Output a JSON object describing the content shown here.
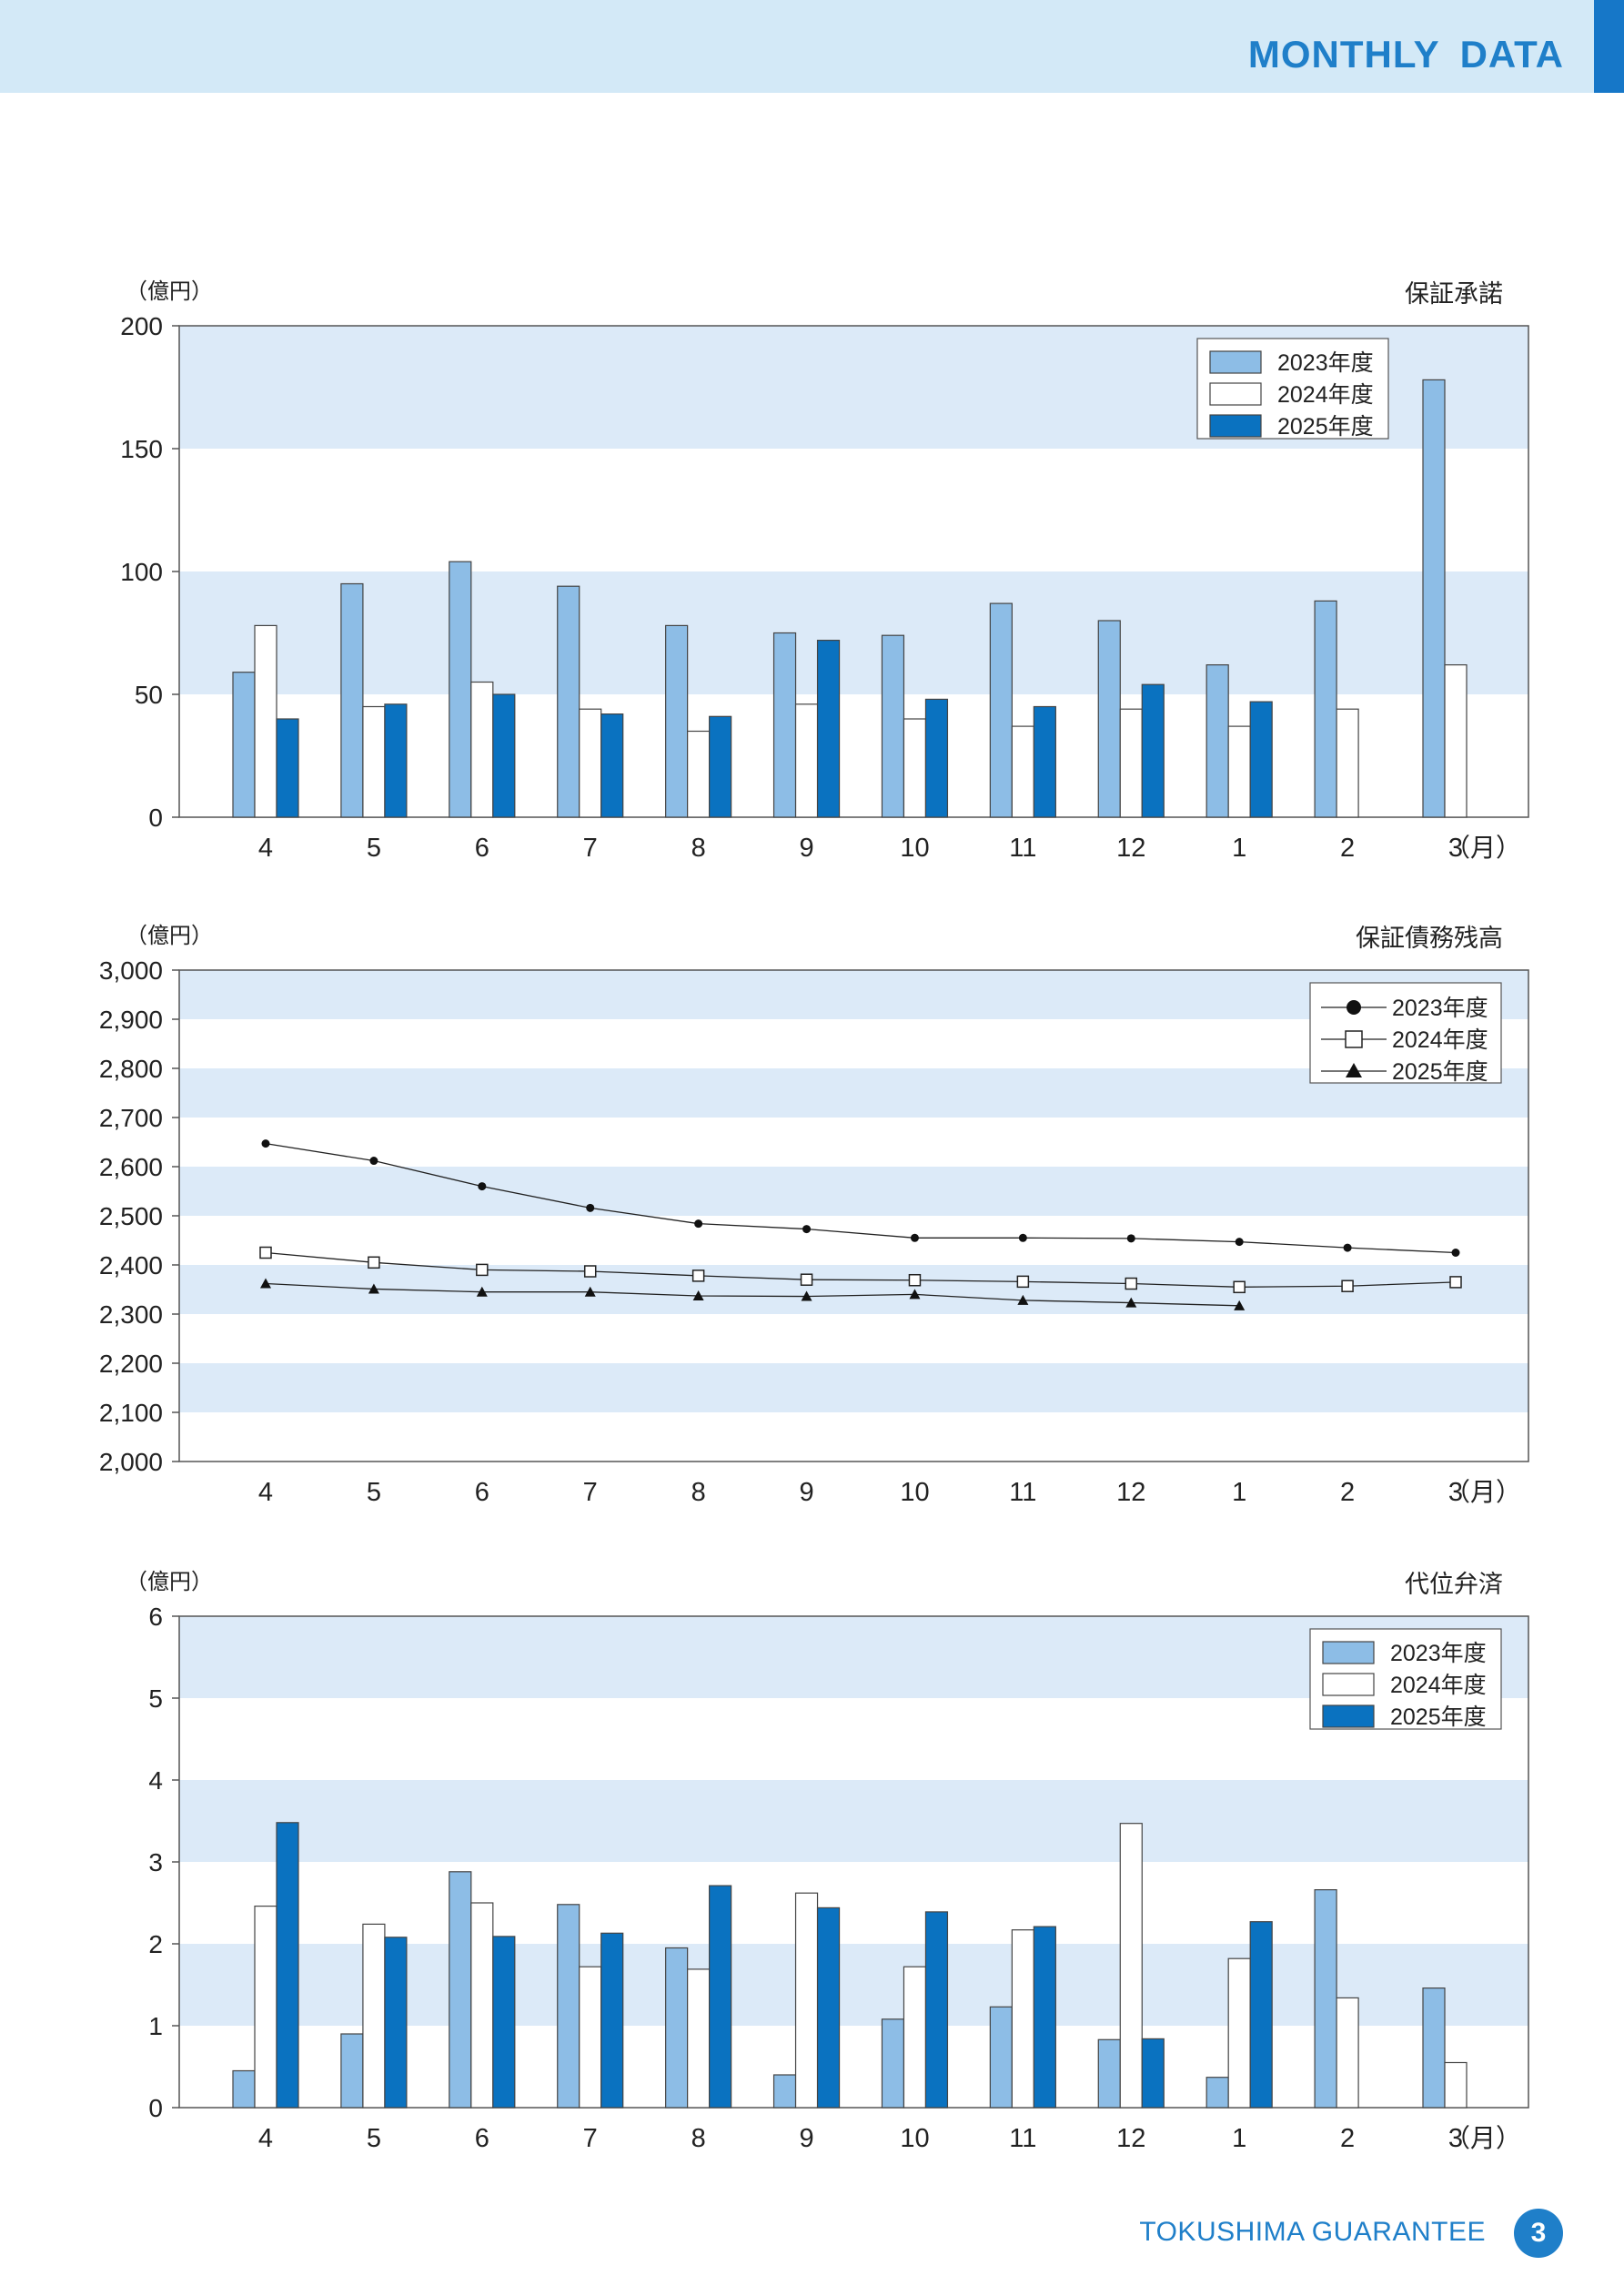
{
  "header": {
    "title": "MONTHLY DATA"
  },
  "footer": {
    "org": "TOKUSHIMA GUARANTEE",
    "page": "3"
  },
  "colors": {
    "c2023": "#8dbde6",
    "c2024": "#ffffff",
    "c2025": "#0a72c0",
    "band": "#dceaf8",
    "accent": "#1f7fc9"
  },
  "chart_data": [
    {
      "type": "bar",
      "title": "保証承諾",
      "ylabel": "（億円）",
      "xunit": "（月）",
      "categories": [
        "4",
        "5",
        "6",
        "7",
        "8",
        "9",
        "10",
        "11",
        "12",
        "1",
        "2",
        "3"
      ],
      "ylim": [
        0,
        200
      ],
      "yticks": [
        "0",
        "50",
        "100",
        "150",
        "200"
      ],
      "series": [
        {
          "name": "2023年度",
          "values": [
            59,
            95,
            104,
            94,
            78,
            75,
            74,
            87,
            80,
            62,
            88,
            178
          ]
        },
        {
          "name": "2024年度",
          "values": [
            78,
            45,
            55,
            44,
            35,
            46,
            40,
            37,
            44,
            37,
            44,
            62
          ]
        },
        {
          "name": "2025年度",
          "values": [
            40,
            46,
            50,
            42,
            41,
            72,
            48,
            45,
            54,
            47,
            null,
            null
          ]
        }
      ]
    },
    {
      "type": "line",
      "title": "保証債務残高",
      "ylabel": "（億円）",
      "xunit": "（月）",
      "categories": [
        "4",
        "5",
        "6",
        "7",
        "8",
        "9",
        "10",
        "11",
        "12",
        "1",
        "2",
        "3"
      ],
      "ylim": [
        2000,
        3000
      ],
      "yticks": [
        "2,000",
        "2,100",
        "2,200",
        "2,300",
        "2,400",
        "2,500",
        "2,600",
        "2,700",
        "2,800",
        "2,900",
        "3,000"
      ],
      "series": [
        {
          "name": "2023年度",
          "marker": "circle",
          "values": [
            2647,
            2612,
            2560,
            2516,
            2484,
            2473,
            2455,
            2455,
            2454,
            2447,
            2435,
            2425
          ]
        },
        {
          "name": "2024年度",
          "marker": "square",
          "values": [
            2425,
            2405,
            2390,
            2387,
            2378,
            2370,
            2369,
            2366,
            2362,
            2355,
            2357,
            2365
          ]
        },
        {
          "name": "2025年度",
          "marker": "triangle",
          "values": [
            2362,
            2351,
            2345,
            2345,
            2337,
            2336,
            2340,
            2328,
            2323,
            2317,
            null,
            null
          ]
        }
      ]
    },
    {
      "type": "bar",
      "title": "代位弁済",
      "ylabel": "（億円）",
      "xunit": "（月）",
      "categories": [
        "4",
        "5",
        "6",
        "7",
        "8",
        "9",
        "10",
        "11",
        "12",
        "1",
        "2",
        "3"
      ],
      "ylim": [
        0,
        6
      ],
      "yticks": [
        "0",
        "1",
        "2",
        "3",
        "4",
        "5",
        "6"
      ],
      "series": [
        {
          "name": "2023年度",
          "values": [
            0.45,
            0.9,
            2.88,
            2.48,
            1.95,
            0.4,
            1.08,
            1.23,
            0.83,
            0.37,
            2.66,
            1.46
          ]
        },
        {
          "name": "2024年度",
          "values": [
            2.46,
            2.24,
            2.5,
            1.72,
            1.69,
            2.62,
            1.72,
            2.17,
            3.47,
            1.82,
            1.34,
            0.55
          ]
        },
        {
          "name": "2025年度",
          "values": [
            3.48,
            2.08,
            2.09,
            2.13,
            2.71,
            2.44,
            2.39,
            2.21,
            0.84,
            2.27,
            null,
            null
          ]
        }
      ]
    }
  ]
}
